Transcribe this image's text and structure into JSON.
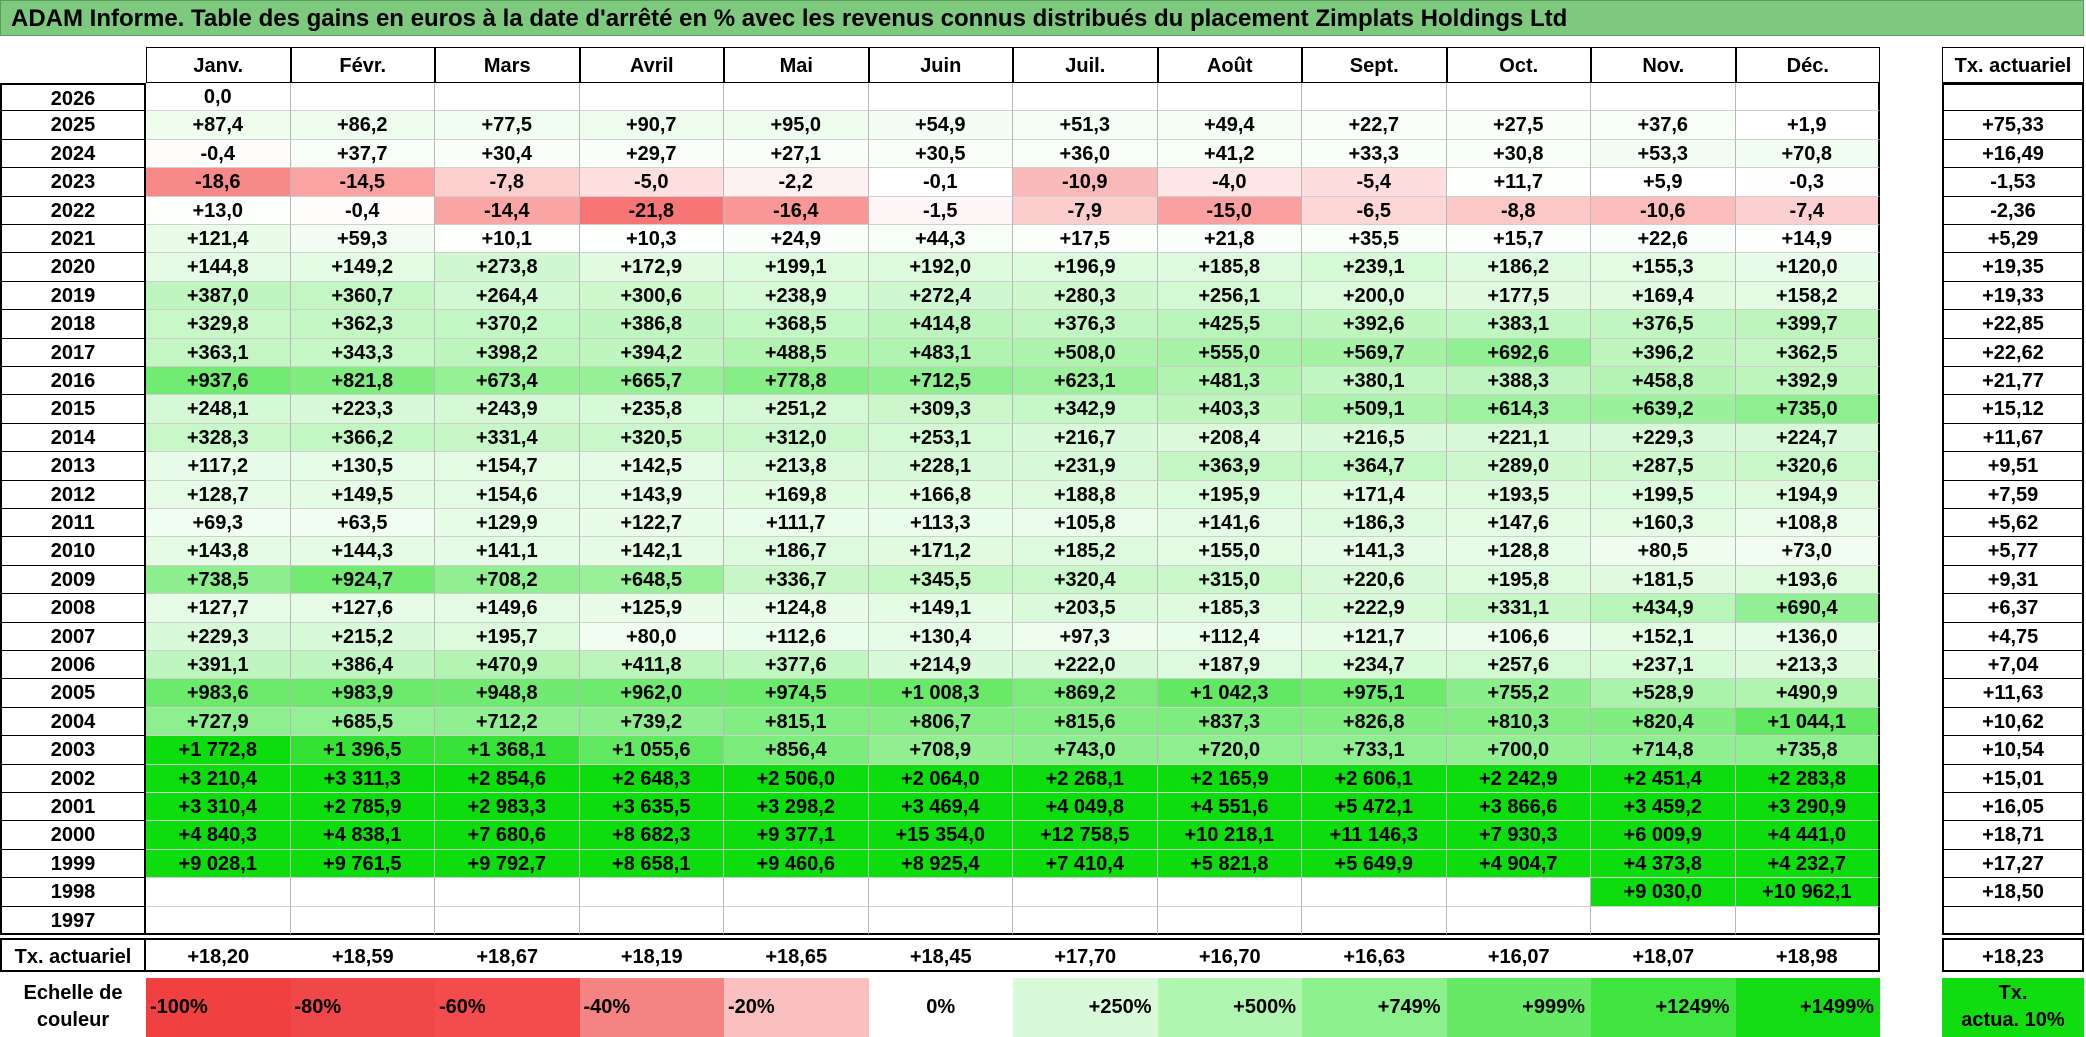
{
  "title": "ADAM Informe. Table des gains en euros à la date d'arrêté en % avec les revenus connus distribués du placement Zimplats Holdings Ltd",
  "months": [
    "Janv.",
    "Févr.",
    "Mars",
    "Avril",
    "Mai",
    "Juin",
    "Juil.",
    "Août",
    "Sept.",
    "Oct.",
    "Nov.",
    "Déc."
  ],
  "tx_header": "Tx. actuariel",
  "rows": [
    {
      "year": "2026",
      "values": [
        "0,0",
        "",
        "",
        "",
        "",
        "",
        "",
        "",
        "",
        "",
        "",
        ""
      ],
      "tx": ""
    },
    {
      "year": "2025",
      "values": [
        "+87,4",
        "+86,2",
        "+77,5",
        "+90,7",
        "+95,0",
        "+54,9",
        "+51,3",
        "+49,4",
        "+22,7",
        "+27,5",
        "+37,6",
        "+1,9"
      ],
      "tx": "+75,33"
    },
    {
      "year": "2024",
      "values": [
        "-0,4",
        "+37,7",
        "+30,4",
        "+29,7",
        "+27,1",
        "+30,5",
        "+36,0",
        "+41,2",
        "+33,3",
        "+30,8",
        "+53,3",
        "+70,8"
      ],
      "tx": "+16,49"
    },
    {
      "year": "2023",
      "values": [
        "-18,6",
        "-14,5",
        "-7,8",
        "-5,0",
        "-2,2",
        "-0,1",
        "-10,9",
        "-4,0",
        "-5,4",
        "+11,7",
        "+5,9",
        "-0,3"
      ],
      "tx": "-1,53"
    },
    {
      "year": "2022",
      "values": [
        "+13,0",
        "-0,4",
        "-14,4",
        "-21,8",
        "-16,4",
        "-1,5",
        "-7,9",
        "-15,0",
        "-6,5",
        "-8,8",
        "-10,6",
        "-7,4"
      ],
      "tx": "-2,36"
    },
    {
      "year": "2021",
      "values": [
        "+121,4",
        "+59,3",
        "+10,1",
        "+10,3",
        "+24,9",
        "+44,3",
        "+17,5",
        "+21,8",
        "+35,5",
        "+15,7",
        "+22,6",
        "+14,9"
      ],
      "tx": "+5,29"
    },
    {
      "year": "2020",
      "values": [
        "+144,8",
        "+149,2",
        "+273,8",
        "+172,9",
        "+199,1",
        "+192,0",
        "+196,9",
        "+185,8",
        "+239,1",
        "+186,2",
        "+155,3",
        "+120,0"
      ],
      "tx": "+19,35"
    },
    {
      "year": "2019",
      "values": [
        "+387,0",
        "+360,7",
        "+264,4",
        "+300,6",
        "+238,9",
        "+272,4",
        "+280,3",
        "+256,1",
        "+200,0",
        "+177,5",
        "+169,4",
        "+158,2"
      ],
      "tx": "+19,33"
    },
    {
      "year": "2018",
      "values": [
        "+329,8",
        "+362,3",
        "+370,2",
        "+386,8",
        "+368,5",
        "+414,8",
        "+376,3",
        "+425,5",
        "+392,6",
        "+383,1",
        "+376,5",
        "+399,7"
      ],
      "tx": "+22,85"
    },
    {
      "year": "2017",
      "values": [
        "+363,1",
        "+343,3",
        "+398,2",
        "+394,2",
        "+488,5",
        "+483,1",
        "+508,0",
        "+555,0",
        "+569,7",
        "+692,6",
        "+396,2",
        "+362,5"
      ],
      "tx": "+22,62"
    },
    {
      "year": "2016",
      "values": [
        "+937,6",
        "+821,8",
        "+673,4",
        "+665,7",
        "+778,8",
        "+712,5",
        "+623,1",
        "+481,3",
        "+380,1",
        "+388,3",
        "+458,8",
        "+392,9"
      ],
      "tx": "+21,77"
    },
    {
      "year": "2015",
      "values": [
        "+248,1",
        "+223,3",
        "+243,9",
        "+235,8",
        "+251,2",
        "+309,3",
        "+342,9",
        "+403,3",
        "+509,1",
        "+614,3",
        "+639,2",
        "+735,0"
      ],
      "tx": "+15,12"
    },
    {
      "year": "2014",
      "values": [
        "+328,3",
        "+366,2",
        "+331,4",
        "+320,5",
        "+312,0",
        "+253,1",
        "+216,7",
        "+208,4",
        "+216,5",
        "+221,1",
        "+229,3",
        "+224,7"
      ],
      "tx": "+11,67"
    },
    {
      "year": "2013",
      "values": [
        "+117,2",
        "+130,5",
        "+154,7",
        "+142,5",
        "+213,8",
        "+228,1",
        "+231,9",
        "+363,9",
        "+364,7",
        "+289,0",
        "+287,5",
        "+320,6"
      ],
      "tx": "+9,51"
    },
    {
      "year": "2012",
      "values": [
        "+128,7",
        "+149,5",
        "+154,6",
        "+143,9",
        "+169,8",
        "+166,8",
        "+188,8",
        "+195,9",
        "+171,4",
        "+193,5",
        "+199,5",
        "+194,9"
      ],
      "tx": "+7,59"
    },
    {
      "year": "2011",
      "values": [
        "+69,3",
        "+63,5",
        "+129,9",
        "+122,7",
        "+111,7",
        "+113,3",
        "+105,8",
        "+141,6",
        "+186,3",
        "+147,6",
        "+160,3",
        "+108,8"
      ],
      "tx": "+5,62"
    },
    {
      "year": "2010",
      "values": [
        "+143,8",
        "+144,3",
        "+141,1",
        "+142,1",
        "+186,7",
        "+171,2",
        "+185,2",
        "+155,0",
        "+141,3",
        "+128,8",
        "+80,5",
        "+73,0"
      ],
      "tx": "+5,77"
    },
    {
      "year": "2009",
      "values": [
        "+738,5",
        "+924,7",
        "+708,2",
        "+648,5",
        "+336,7",
        "+345,5",
        "+320,4",
        "+315,0",
        "+220,6",
        "+195,8",
        "+181,5",
        "+193,6"
      ],
      "tx": "+9,31"
    },
    {
      "year": "2008",
      "values": [
        "+127,7",
        "+127,6",
        "+149,6",
        "+125,9",
        "+124,8",
        "+149,1",
        "+203,5",
        "+185,3",
        "+222,9",
        "+331,1",
        "+434,9",
        "+690,4"
      ],
      "tx": "+6,37"
    },
    {
      "year": "2007",
      "values": [
        "+229,3",
        "+215,2",
        "+195,7",
        "+80,0",
        "+112,6",
        "+130,4",
        "+97,3",
        "+112,4",
        "+121,7",
        "+106,6",
        "+152,1",
        "+136,0"
      ],
      "tx": "+4,75"
    },
    {
      "year": "2006",
      "values": [
        "+391,1",
        "+386,4",
        "+470,9",
        "+411,8",
        "+377,6",
        "+214,9",
        "+222,0",
        "+187,9",
        "+234,7",
        "+257,6",
        "+237,1",
        "+213,3"
      ],
      "tx": "+7,04"
    },
    {
      "year": "2005",
      "values": [
        "+983,6",
        "+983,9",
        "+948,8",
        "+962,0",
        "+974,5",
        "+1 008,3",
        "+869,2",
        "+1 042,3",
        "+975,1",
        "+755,2",
        "+528,9",
        "+490,9"
      ],
      "tx": "+11,63"
    },
    {
      "year": "2004",
      "values": [
        "+727,9",
        "+685,5",
        "+712,2",
        "+739,2",
        "+815,1",
        "+806,7",
        "+815,6",
        "+837,3",
        "+826,8",
        "+810,3",
        "+820,4",
        "+1 044,1"
      ],
      "tx": "+10,62"
    },
    {
      "year": "2003",
      "values": [
        "+1 772,8",
        "+1 396,5",
        "+1 368,1",
        "+1 055,6",
        "+856,4",
        "+708,9",
        "+743,0",
        "+720,0",
        "+733,1",
        "+700,0",
        "+714,8",
        "+735,8"
      ],
      "tx": "+10,54"
    },
    {
      "year": "2002",
      "values": [
        "+3 210,4",
        "+3 311,3",
        "+2 854,6",
        "+2 648,3",
        "+2 506,0",
        "+2 064,0",
        "+2 268,1",
        "+2 165,9",
        "+2 606,1",
        "+2 242,9",
        "+2 451,4",
        "+2 283,8"
      ],
      "tx": "+15,01"
    },
    {
      "year": "2001",
      "values": [
        "+3 310,4",
        "+2 785,9",
        "+2 983,3",
        "+3 635,5",
        "+3 298,2",
        "+3 469,4",
        "+4 049,8",
        "+4 551,6",
        "+5 472,1",
        "+3 866,6",
        "+3 459,2",
        "+3 290,9"
      ],
      "tx": "+16,05"
    },
    {
      "year": "2000",
      "values": [
        "+4 840,3",
        "+4 838,1",
        "+7 680,6",
        "+8 682,3",
        "+9 377,1",
        "+15 354,0",
        "+12 758,5",
        "+10 218,1",
        "+11 146,3",
        "+7 930,3",
        "+6 009,9",
        "+4 441,0"
      ],
      "tx": "+18,71"
    },
    {
      "year": "1999",
      "values": [
        "+9 028,1",
        "+9 761,5",
        "+9 792,7",
        "+8 658,1",
        "+9 460,6",
        "+8 925,4",
        "+7 410,4",
        "+5 821,8",
        "+5 649,9",
        "+4 904,7",
        "+4 373,8",
        "+4 232,7"
      ],
      "tx": "+17,27"
    },
    {
      "year": "1998",
      "values": [
        "",
        "",
        "",
        "",
        "",
        "",
        "",
        "",
        "",
        "",
        "+9 030,0",
        "+10 962,1"
      ],
      "tx": "+18,50"
    },
    {
      "year": "1997",
      "values": [
        "",
        "",
        "",
        "",
        "",
        "",
        "",
        "",
        "",
        "",
        "",
        ""
      ],
      "tx": ""
    }
  ],
  "footer": {
    "label": "Tx. actuariel",
    "values": [
      "+18,20",
      "+18,59",
      "+18,67",
      "+18,19",
      "+18,65",
      "+18,45",
      "+17,70",
      "+16,70",
      "+16,63",
      "+16,07",
      "+18,07",
      "+18,98"
    ],
    "total": "+18,23"
  },
  "scale": {
    "label_line1": "Echelle de",
    "label_line2": "couleur",
    "items": [
      {
        "label": "-100%",
        "color": "#f04040"
      },
      {
        "label": "-80%",
        "color": "#f04848"
      },
      {
        "label": "-60%",
        "color": "#f44c4c"
      },
      {
        "label": "-40%",
        "color": "#f48484"
      },
      {
        "label": "-20%",
        "color": "#fac0c0"
      },
      {
        "label": "0%",
        "color": "#ffffff"
      },
      {
        "label": "+250%",
        "color": "#d8fad8"
      },
      {
        "label": "+500%",
        "color": "#b0f5b0"
      },
      {
        "label": "+749%",
        "color": "#8cf08c"
      },
      {
        "label": "+999%",
        "color": "#66ea66"
      },
      {
        "label": "+1249%",
        "color": "#3fe43f"
      },
      {
        "label": "+1499%",
        "color": "#14dc14"
      }
    ],
    "tx_line1": "Tx.",
    "tx_line2": "actua. 10%",
    "tx_color": "#10dc10"
  },
  "colors": {
    "title_bg": "#7dc97d",
    "negative_max": "#f77474",
    "positive_max": "#0ddc0d"
  }
}
